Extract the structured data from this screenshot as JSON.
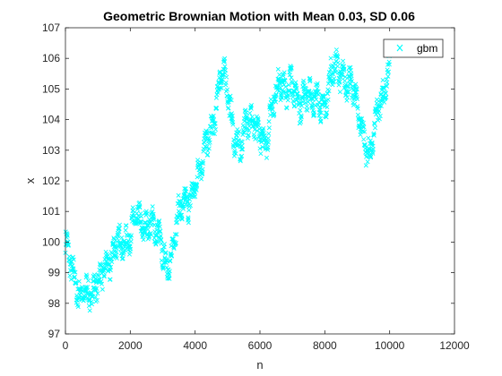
{
  "chart_data": {
    "type": "scatter",
    "title": "Geometric Brownian Motion with Mean 0.03, SD 0.06",
    "xlabel": "n",
    "ylabel": "x",
    "xlim": [
      0,
      12000
    ],
    "ylim": [
      97,
      107
    ],
    "xticks": [
      "0",
      "2000",
      "4000",
      "6000",
      "8000",
      "10000",
      "12000"
    ],
    "yticks": [
      "97",
      "98",
      "99",
      "100",
      "101",
      "102",
      "103",
      "104",
      "105",
      "106",
      "107"
    ],
    "grid": false,
    "legend": {
      "position": "top-right",
      "entries": [
        "gbm"
      ]
    },
    "series": [
      {
        "name": "gbm",
        "color": "#00ffff",
        "marker": "x",
        "n_points": 10000,
        "x": [
          0,
          200,
          400,
          600,
          800,
          1000,
          1200,
          1400,
          1600,
          1800,
          2000,
          2200,
          2400,
          2600,
          2800,
          3000,
          3200,
          3400,
          3600,
          3800,
          4000,
          4200,
          4400,
          4600,
          4800,
          5000,
          5200,
          5400,
          5600,
          5800,
          6000,
          6200,
          6400,
          6600,
          6800,
          7000,
          7200,
          7400,
          7600,
          7800,
          8000,
          8200,
          8400,
          8600,
          8800,
          9000,
          9200,
          9400,
          9600,
          9800,
          10000
        ],
        "y": [
          100.0,
          98.9,
          98.4,
          98.6,
          98.0,
          98.7,
          99.4,
          99.2,
          99.9,
          100.1,
          100.3,
          100.6,
          100.5,
          100.9,
          100.2,
          99.6,
          99.3,
          100.5,
          101.0,
          101.4,
          102.0,
          102.4,
          103.4,
          104.2,
          105.5,
          104.9,
          103.6,
          103.1,
          103.8,
          104.0,
          103.7,
          103.0,
          104.6,
          105.5,
          104.8,
          105.1,
          104.6,
          105.0,
          104.4,
          104.7,
          104.5,
          105.4,
          105.6,
          105.5,
          105.2,
          104.2,
          103.6,
          102.9,
          103.9,
          104.8,
          106.0
        ]
      }
    ]
  }
}
